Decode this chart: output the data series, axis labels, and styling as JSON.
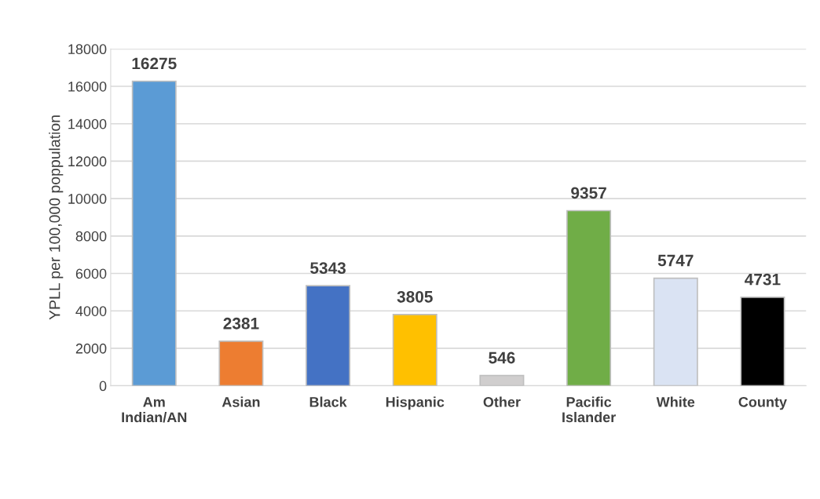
{
  "chart_data": {
    "type": "bar",
    "ylabel": "YPLL per 100,000 poppulation",
    "categories": [
      "Am\nIndian/AN",
      "Asian",
      "Black",
      "Hispanic",
      "Other",
      "Pacific\nIslander",
      "White",
      "County"
    ],
    "values": [
      16275,
      2381,
      5343,
      3805,
      546,
      9357,
      5747,
      4731
    ],
    "colors": [
      "#5b9bd5",
      "#ed7d31",
      "#4472c4",
      "#ffc000",
      "#d0cece",
      "#70ad47",
      "#dae3f3",
      "#000000"
    ],
    "ylim": [
      0,
      18000
    ],
    "yticks": [
      0,
      2000,
      4000,
      6000,
      8000,
      10000,
      12000,
      14000,
      16000,
      18000
    ],
    "grid": "y",
    "data_labels": true,
    "legend": false
  }
}
